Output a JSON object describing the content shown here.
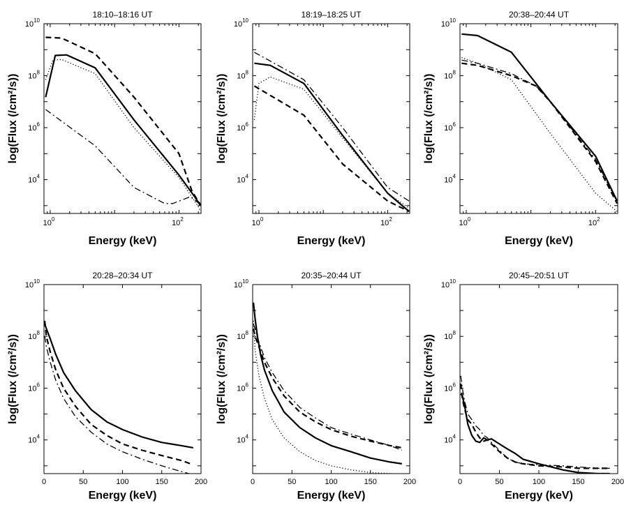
{
  "figure": {
    "chart_data": [
      {
        "type": "line",
        "title": "18:10–18:16 UT",
        "xlabel": "Energy (keV)",
        "ylabel": "log(Flux (/cm²/s))",
        "xscale": "log",
        "yscale": "log",
        "xlim": [
          0.8,
          220
        ],
        "ylim": [
          500,
          10000000000.0
        ],
        "xticks": [
          {
            "v": 1,
            "m": "10",
            "e": "0"
          },
          {
            "v": 100,
            "m": "10",
            "e": "2"
          }
        ],
        "yticks": [
          {
            "v": 10000,
            "m": "10",
            "e": "4"
          },
          {
            "v": 1000000,
            "m": "10",
            "e": "6"
          },
          {
            "v": 100000000,
            "m": "10",
            "e": "8"
          },
          {
            "v": 10000000000,
            "m": "10",
            "e": "10"
          }
        ],
        "series": [
          {
            "style": "solid",
            "x": [
              0.85,
              1.2,
              1.8,
              5,
              20,
              100,
              180,
              215
            ],
            "y": [
              15000000,
              600000000,
              630000000,
              200000000,
              2000000,
              15000,
              2000,
              1000
            ]
          },
          {
            "style": "dashed",
            "x": [
              0.85,
              1.5,
              5,
              20,
              100,
              160,
              215
            ],
            "y": [
              3000000000,
              2800000000,
              700000000,
              15000000,
              100000,
              3500,
              1100
            ]
          },
          {
            "style": "dotted",
            "x": [
              0.85,
              1.1,
              1.5,
              5,
              20,
              100,
              200,
              215
            ],
            "y": [
              70000000,
              400000000,
              420000000,
              120000000,
              1000000,
              12000,
              900,
              600
            ]
          },
          {
            "style": "dashdot",
            "x": [
              0.85,
              5,
              20,
              60,
              80,
              150,
              215
            ],
            "y": [
              5000000,
              200000,
              5000,
              1200,
              1200,
              2200,
              1100
            ]
          }
        ]
      },
      {
        "type": "line",
        "title": "18:19–18:25 UT",
        "xlabel": "Energy (keV)",
        "ylabel": "log(Flux (/cm²/s))",
        "xscale": "log",
        "yscale": "log",
        "xlim": [
          0.8,
          220
        ],
        "ylim": [
          500,
          10000000000.0
        ],
        "xticks": [
          {
            "v": 1,
            "m": "10",
            "e": "0"
          },
          {
            "v": 100,
            "m": "10",
            "e": "2"
          }
        ],
        "yticks": [
          {
            "v": 10000,
            "m": "10",
            "e": "4"
          },
          {
            "v": 1000000,
            "m": "10",
            "e": "6"
          },
          {
            "v": 100000000,
            "m": "10",
            "e": "8"
          },
          {
            "v": 10000000000,
            "m": "10",
            "e": "10"
          }
        ],
        "series": [
          {
            "style": "solid",
            "x": [
              0.85,
              1.5,
              5,
              20,
              100,
              215
            ],
            "y": [
              300000000,
              250000000,
              50000000,
              500000,
              3000,
              600
            ]
          },
          {
            "style": "dashed",
            "x": [
              0.85,
              5,
              20,
              100,
              215
            ],
            "y": [
              40000000,
              3000000,
              40000,
              1500,
              600
            ]
          },
          {
            "style": "dotted",
            "x": [
              0.85,
              1,
              1.5,
              5,
              20,
              100,
              215
            ],
            "y": [
              2000000,
              50000000,
              90000000,
              30000000,
              400000,
              3000,
              800
            ]
          },
          {
            "style": "dashdot",
            "x": [
              0.85,
              5,
              20,
              100,
              215
            ],
            "y": [
              800000000,
              70000000,
              1000000,
              5000,
              1500
            ]
          }
        ]
      },
      {
        "type": "line",
        "title": "20:38–20:44 UT",
        "xlabel": "Energy (keV)",
        "ylabel": "log(Flux (/cm²/s))",
        "xscale": "log",
        "yscale": "log",
        "xlim": [
          0.8,
          220
        ],
        "ylim": [
          500,
          10000000000.0
        ],
        "xticks": [
          {
            "v": 1,
            "m": "10",
            "e": "0"
          },
          {
            "v": 100,
            "m": "10",
            "e": "2"
          }
        ],
        "yticks": [
          {
            "v": 10000,
            "m": "10",
            "e": "4"
          },
          {
            "v": 1000000,
            "m": "10",
            "e": "6"
          },
          {
            "v": 100000000,
            "m": "10",
            "e": "8"
          },
          {
            "v": 10000000000,
            "m": "10",
            "e": "10"
          }
        ],
        "series": [
          {
            "style": "solid",
            "x": [
              0.85,
              1.5,
              5,
              20,
              100,
              215
            ],
            "y": [
              4000000000,
              3500000000,
              800000000,
              10000000,
              80000,
              1500
            ]
          },
          {
            "style": "dashed",
            "x": [
              0.85,
              1.5,
              5,
              12,
              20,
              100,
              215
            ],
            "y": [
              300000000,
              250000000,
              100000000,
              40000000,
              10000000,
              50000,
              1200
            ]
          },
          {
            "style": "dotted",
            "x": [
              0.85,
              1.5,
              5,
              20,
              100,
              215
            ],
            "y": [
              500000000,
              300000000,
              70000000,
              600000,
              3000,
              600
            ]
          },
          {
            "style": "dashdot",
            "x": [
              0.85,
              1.5,
              5,
              12,
              20,
              100,
              215
            ],
            "y": [
              400000000,
              300000000,
              120000000,
              40000000,
              10000000,
              60000,
              1400
            ]
          }
        ]
      },
      {
        "type": "line",
        "title": "20:28–20:34 UT",
        "xlabel": "Energy (keV)",
        "ylabel": "log(Flux (/cm²/s))",
        "xscale": "linear",
        "yscale": "log",
        "xlim": [
          0,
          200
        ],
        "ylim": [
          500,
          10000000000.0
        ],
        "xticks": [
          {
            "v": 0,
            "t": "0"
          },
          {
            "v": 50,
            "t": "50"
          },
          {
            "v": 100,
            "t": "100"
          },
          {
            "v": 150,
            "t": "150"
          },
          {
            "v": 200,
            "t": "200"
          }
        ],
        "yticks": [
          {
            "v": 10000,
            "m": "10",
            "e": "4"
          },
          {
            "v": 1000000,
            "m": "10",
            "e": "6"
          },
          {
            "v": 100000000,
            "m": "10",
            "e": "8"
          },
          {
            "v": 10000000000,
            "m": "10",
            "e": "10"
          }
        ],
        "series": [
          {
            "style": "solid",
            "x": [
              1,
              3,
              8,
              15,
              25,
              40,
              60,
              80,
              100,
              125,
              150,
              175,
              190
            ],
            "y": [
              300000000,
              200000000,
              80000000,
              20000000,
              4000000,
              800000,
              150000,
              50000,
              25000,
              13000,
              8000,
              6000,
              5000
            ]
          },
          {
            "style": "dashed",
            "x": [
              1,
              3,
              8,
              15,
              25,
              40,
              60,
              80,
              100,
              125,
              150,
              175,
              190
            ],
            "y": [
              400000000,
              100000000,
              25000000,
              5000000,
              1000000,
              200000,
              40000,
              15000,
              7000,
              4000,
              2500,
              1600,
              1100
            ]
          },
          {
            "style": "dashdot",
            "x": [
              1,
              3,
              8,
              15,
              25,
              40,
              60,
              80,
              100,
              125,
              150,
              175,
              190
            ],
            "y": [
              100000000,
              40000000,
              10000000,
              2000000,
              400000,
              80000,
              20000,
              7000,
              3500,
              1800,
              1000,
              600,
              450
            ]
          }
        ]
      },
      {
        "type": "line",
        "title": "20:35–20:44 UT",
        "xlabel": "Energy (keV)",
        "ylabel": "log(Flux (/cm²/s))",
        "xscale": "linear",
        "yscale": "log",
        "xlim": [
          0,
          200
        ],
        "ylim": [
          500,
          10000000000.0
        ],
        "xticks": [
          {
            "v": 0,
            "t": "0"
          },
          {
            "v": 50,
            "t": "50"
          },
          {
            "v": 100,
            "t": "100"
          },
          {
            "v": 150,
            "t": "150"
          },
          {
            "v": 200,
            "t": "200"
          }
        ],
        "yticks": [
          {
            "v": 10000,
            "m": "10",
            "e": "4"
          },
          {
            "v": 1000000,
            "m": "10",
            "e": "6"
          },
          {
            "v": 100000000,
            "m": "10",
            "e": "8"
          },
          {
            "v": 10000000000,
            "m": "10",
            "e": "10"
          }
        ],
        "series": [
          {
            "style": "solid",
            "x": [
              1,
              3,
              6,
              10,
              15,
              25,
              40,
              60,
              80,
              100,
              125,
              150,
              175,
              190
            ],
            "y": [
              2000000000,
              500000000,
              100000000,
              20000000,
              5000000,
              800000,
              120000,
              30000,
              12000,
              6000,
              3500,
              2000,
              1400,
              1200
            ]
          },
          {
            "style": "dashed",
            "x": [
              1,
              3,
              8,
              15,
              25,
              40,
              60,
              80,
              100,
              125,
              150,
              175,
              190
            ],
            "y": [
              200000000,
              100000000,
              40000000,
              10000000,
              2500000,
              500000,
              120000,
              50000,
              25000,
              14000,
              9000,
              6000,
              5000
            ]
          },
          {
            "style": "dotted",
            "x": [
              1,
              3,
              8,
              15,
              25,
              40,
              60,
              80,
              100,
              125,
              150,
              175,
              190
            ],
            "y": [
              400000000,
              30000000,
              3000000,
              400000,
              60000,
              12000,
              3500,
              1600,
              1000,
              700,
              550,
              500,
              450
            ]
          },
          {
            "style": "dashdot",
            "x": [
              1,
              3,
              8,
              15,
              25,
              40,
              60,
              80,
              100,
              125,
              150,
              175,
              190
            ],
            "y": [
              300000000,
              200000000,
              60000000,
              15000000,
              4000000,
              800000,
              180000,
              70000,
              30000,
              17000,
              10000,
              6000,
              4000
            ]
          }
        ]
      },
      {
        "type": "line",
        "title": "20:45–20:51 UT",
        "xlabel": "Energy (keV)",
        "ylabel": "log(Flux (/cm²/s))",
        "xscale": "linear",
        "yscale": "log",
        "xlim": [
          0,
          200
        ],
        "ylim": [
          500,
          10000000000.0
        ],
        "xticks": [
          {
            "v": 0,
            "t": "0"
          },
          {
            "v": 50,
            "t": "50"
          },
          {
            "v": 100,
            "t": "100"
          },
          {
            "v": 150,
            "t": "150"
          },
          {
            "v": 200,
            "t": "200"
          }
        ],
        "yticks": [
          {
            "v": 10000,
            "m": "10",
            "e": "4"
          },
          {
            "v": 1000000,
            "m": "10",
            "e": "6"
          },
          {
            "v": 100000000,
            "m": "10",
            "e": "8"
          },
          {
            "v": 10000000000,
            "m": "10",
            "e": "10"
          }
        ],
        "series": [
          {
            "style": "solid",
            "x": [
              1,
              3,
              6,
              10,
              15,
              20,
              25,
              30,
              35,
              40,
              50,
              60,
              70,
              80,
              100,
              130,
              150,
              175,
              190
            ],
            "y": [
              600000,
              500000,
              200000,
              40000,
              15000,
              9000,
              8000,
              12000,
              10000,
              11000,
              7000,
              4500,
              3000,
              1800,
              1200,
              700,
              550,
              500,
              500
            ]
          },
          {
            "style": "dashed",
            "x": [
              1,
              3,
              6,
              10,
              15,
              20,
              25,
              30,
              35,
              40,
              50,
              60,
              70,
              80,
              100,
              130,
              150,
              175,
              190
            ],
            "y": [
              1500000,
              400000,
              150000,
              60000,
              40000,
              20000,
              12000,
              9000,
              10000,
              7000,
              3500,
              2000,
              1400,
              1200,
              1000,
              900,
              800,
              800,
              800
            ]
          },
          {
            "style": "dashdot",
            "x": [
              1,
              3,
              6,
              10,
              15,
              20,
              25,
              30,
              35,
              40,
              50,
              60,
              70,
              80,
              100,
              130,
              150,
              175,
              190
            ],
            "y": [
              3000000,
              1000000,
              300000,
              100000,
              60000,
              35000,
              25000,
              15000,
              12000,
              8000,
              4000,
              2000,
              1400,
              1200,
              1100,
              1000,
              900,
              800,
              800
            ]
          }
        ]
      }
    ]
  }
}
